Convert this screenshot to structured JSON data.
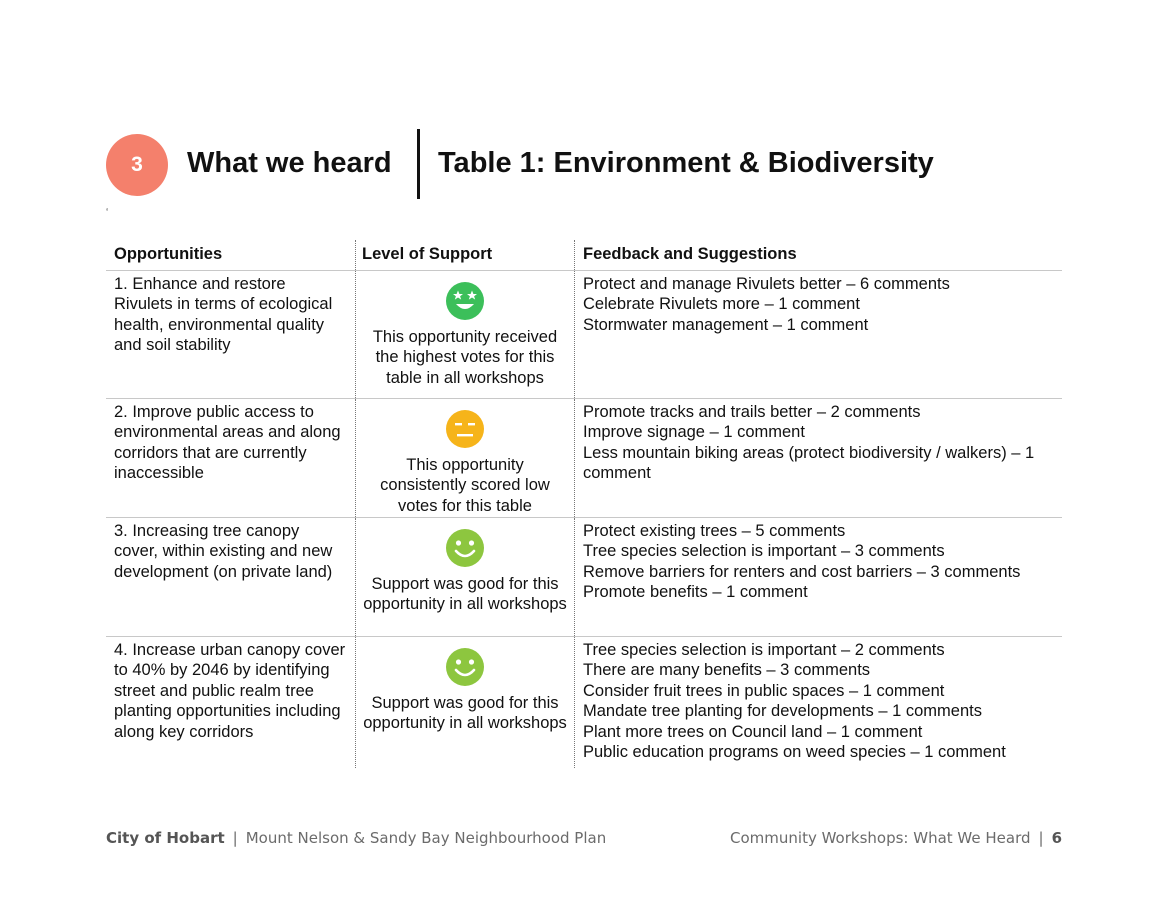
{
  "header": {
    "section_number": "3",
    "section_title": "What we heard",
    "table_title": "Table 1: Environment & Biodiversity",
    "stray_mark": "‘"
  },
  "table": {
    "columns": [
      "Opportunities",
      "Level of Support",
      "Feedback and Suggestions"
    ],
    "rows": [
      {
        "opportunity": "1. Enhance and restore Rivulets in terms of ecological health, environmental quality and soil stability",
        "support_icon": "star-eyes-face-icon",
        "support_color": "#3cbf5a",
        "support_text": "This opportunity received the highest votes for this table in all workshops",
        "feedback": [
          "Protect and manage Rivulets better – 6 comments",
          "Celebrate Rivulets more – 1 comment",
          "Stormwater management – 1 comment"
        ]
      },
      {
        "opportunity": "2. Improve public access to environmental areas and along corridors that are currently inaccessible",
        "support_icon": "neutral-face-icon",
        "support_color": "#f6b41a",
        "support_text": "This opportunity consistently scored low votes for this table",
        "feedback": [
          "Promote tracks and trails better – 2 comments",
          "Improve signage – 1 comment",
          "Less mountain biking areas (protect biodiversity / walkers) – 1 comment"
        ]
      },
      {
        "opportunity": "3. Increasing tree canopy cover, within existing and new development (on private land)",
        "support_icon": "smiley-face-icon",
        "support_color": "#8dc63f",
        "support_text": "Support was good for this opportunity in all workshops",
        "feedback": [
          "Protect existing trees – 5 comments",
          "Tree species selection is important – 3 comments",
          "Remove barriers for renters and cost barriers – 3 comments",
          "Promote benefits – 1 comment"
        ]
      },
      {
        "opportunity": "4. Increase urban canopy cover to 40% by 2046 by identifying street and public realm tree planting opportunities including along key corridors",
        "support_icon": "smiley-face-icon",
        "support_color": "#8dc63f",
        "support_text": "Support was good for this opportunity in all workshops",
        "feedback": [
          "Tree species selection is important – 2 comments",
          "There are many benefits – 3 comments",
          "Consider fruit trees in public spaces – 1 comment",
          "Mandate tree planting for developments – 1 comments",
          "Plant more trees on Council land – 1 comment",
          "Public education programs on weed species – 1 comment"
        ]
      }
    ]
  },
  "footer": {
    "org": "City of Hobart",
    "plan": "Mount Nelson & Sandy Bay Neighbourhood Plan",
    "doc": "Community Workshops: What We Heard",
    "page": "6",
    "separator": "|"
  },
  "colors": {
    "badge": "#f4806c"
  }
}
